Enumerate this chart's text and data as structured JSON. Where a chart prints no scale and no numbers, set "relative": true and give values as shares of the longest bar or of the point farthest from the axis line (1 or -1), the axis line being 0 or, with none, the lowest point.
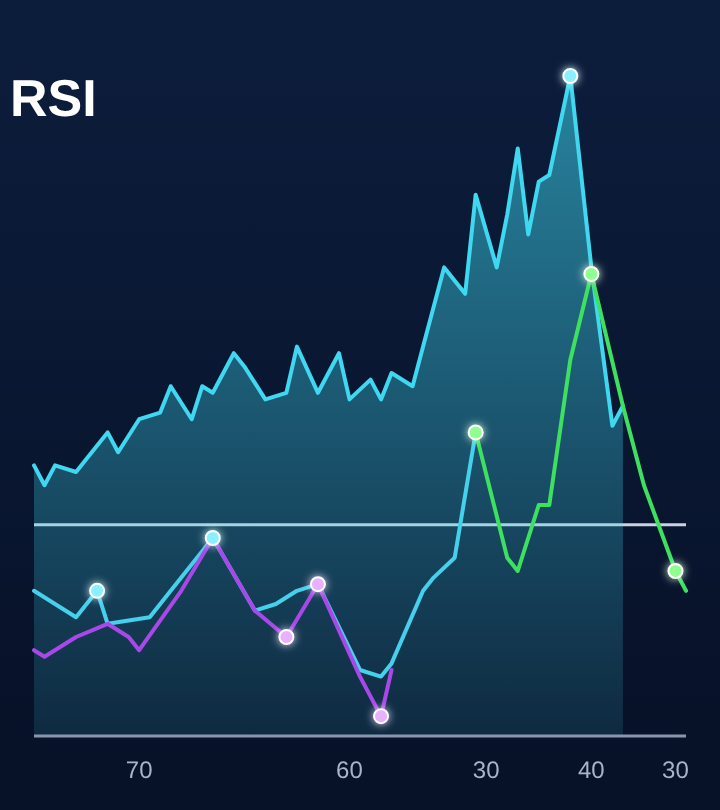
{
  "chart_data": {
    "type": "area",
    "title": "RSI",
    "relative": true,
    "categories": [
      null,
      null,
      null,
      null,
      null,
      null,
      null,
      null,
      null,
      null,
      "70",
      null,
      null,
      null,
      null,
      null,
      null,
      null,
      null,
      null,
      null,
      null,
      null,
      null,
      null,
      null,
      null,
      null,
      null,
      null,
      "60",
      null,
      null,
      null,
      null,
      null,
      null,
      null,
      null,
      null,
      null,
      null,
      null,
      "30",
      null,
      null,
      null,
      null,
      null,
      null,
      null,
      null,
      null,
      "40",
      null,
      null,
      null,
      null,
      null,
      null,
      null,
      "30",
      null
    ],
    "ref_lines": [
      {
        "axis": "y",
        "value": 0.32,
        "color": "#c8d2e0"
      }
    ],
    "series": [
      {
        "color": "#3fd8f0",
        "values": [
          0.41,
          0.38,
          0.41,
          null,
          0.4,
          0.42,
          null,
          0.46,
          0.43,
          null,
          0.48,
          null,
          0.49,
          0.53,
          null,
          0.48,
          0.53,
          0.52,
          null,
          0.58,
          0.56,
          null,
          0.51,
          null,
          0.52,
          0.59,
          null,
          0.52,
          null,
          0.58,
          0.51,
          null,
          0.54,
          0.51,
          0.55,
          null,
          0.53,
          0.59,
          null,
          0.71,
          null,
          0.67,
          0.82,
          null,
          0.71,
          0.79,
          0.89,
          0.76,
          0.84,
          0.85,
          null,
          1,
          null,
          0.71,
          null,
          0.47,
          0.5,
          null,
          null,
          null,
          null,
          null,
          null
        ]
      },
      {
        "type": "line",
        "color": "#45d0ec",
        "values": [
          0.22,
          null,
          null,
          null,
          0.18,
          null,
          0.22,
          0.17,
          null,
          null,
          null,
          0.18,
          null,
          0.22,
          null,
          null,
          null,
          0.3,
          null,
          null,
          null,
          0.19,
          null,
          0.2,
          null,
          0.22,
          null,
          0.23,
          null,
          null,
          null,
          0.1,
          null,
          0.09,
          0.11,
          null,
          null,
          0.22,
          0.24,
          null,
          0.27,
          null,
          0.46,
          null,
          null,
          null,
          null,
          null,
          null,
          null,
          null,
          null,
          null,
          null,
          null,
          null,
          null,
          null,
          null,
          null,
          null,
          null,
          null
        ]
      },
      {
        "type": "line",
        "color": "#a848e8",
        "values": [
          0.13,
          0.12,
          null,
          null,
          0.15,
          null,
          null,
          0.17,
          null,
          0.15,
          0.13,
          null,
          null,
          null,
          0.22,
          null,
          null,
          0.3,
          null,
          null,
          null,
          0.19,
          null,
          null,
          0.15,
          null,
          null,
          0.23,
          null,
          null,
          null,
          0.09,
          null,
          0.03,
          0.1,
          null,
          null,
          null,
          null,
          null,
          null,
          null,
          null,
          null,
          null,
          null,
          null,
          null,
          null,
          null,
          null,
          null,
          null,
          null,
          null,
          null,
          null,
          null,
          null,
          null,
          null,
          null,
          null
        ]
      },
      {
        "type": "line",
        "color": "#3ee060",
        "values": [
          null,
          null,
          null,
          null,
          null,
          null,
          null,
          null,
          null,
          null,
          null,
          null,
          null,
          null,
          null,
          null,
          null,
          null,
          null,
          null,
          null,
          null,
          null,
          null,
          null,
          null,
          null,
          null,
          null,
          null,
          null,
          null,
          null,
          null,
          null,
          null,
          null,
          null,
          null,
          null,
          null,
          null,
          0.46,
          null,
          null,
          0.27,
          0.25,
          null,
          0.35,
          0.35,
          null,
          0.57,
          null,
          0.7,
          null,
          null,
          0.5,
          null,
          0.38,
          null,
          null,
          0.25,
          0.22
        ]
      },
      {
        "type": "scatter",
        "color": "#8af0ff",
        "values": [
          null,
          null,
          null,
          null,
          null,
          null,
          0.22,
          null,
          null,
          null,
          null,
          null,
          null,
          null,
          null,
          null,
          null,
          0.3,
          null,
          null,
          null,
          null,
          null,
          null,
          null,
          null,
          null,
          null,
          null,
          null,
          null,
          null,
          null,
          null,
          null,
          null,
          null,
          null,
          null,
          null,
          null,
          null,
          null,
          null,
          null,
          null,
          null,
          null,
          null,
          null,
          null,
          1,
          null,
          null,
          null,
          null,
          null,
          null,
          null,
          null,
          null,
          null,
          null
        ]
      },
      {
        "type": "scatter",
        "color": "#e8b0ff",
        "values": [
          null,
          null,
          null,
          null,
          null,
          null,
          null,
          null,
          null,
          null,
          null,
          null,
          null,
          null,
          null,
          null,
          null,
          null,
          null,
          null,
          null,
          null,
          null,
          null,
          0.15,
          null,
          null,
          0.23,
          null,
          null,
          null,
          null,
          null,
          0.03,
          null,
          null,
          null,
          null,
          null,
          null,
          null,
          null,
          null,
          null,
          null,
          null,
          null,
          null,
          null,
          null,
          null,
          null,
          null,
          null,
          null,
          null,
          null,
          null,
          null,
          null,
          null,
          null,
          null
        ]
      },
      {
        "type": "scatter",
        "color": "#90ff90",
        "values": [
          null,
          null,
          null,
          null,
          null,
          null,
          null,
          null,
          null,
          null,
          null,
          null,
          null,
          null,
          null,
          null,
          null,
          null,
          null,
          null,
          null,
          null,
          null,
          null,
          null,
          null,
          null,
          null,
          null,
          null,
          null,
          null,
          null,
          null,
          null,
          null,
          null,
          null,
          null,
          null,
          null,
          null,
          0.46,
          null,
          null,
          null,
          null,
          null,
          null,
          null,
          null,
          null,
          null,
          0.7,
          null,
          null,
          null,
          null,
          null,
          null,
          null,
          0.25,
          null
        ]
      }
    ]
  }
}
